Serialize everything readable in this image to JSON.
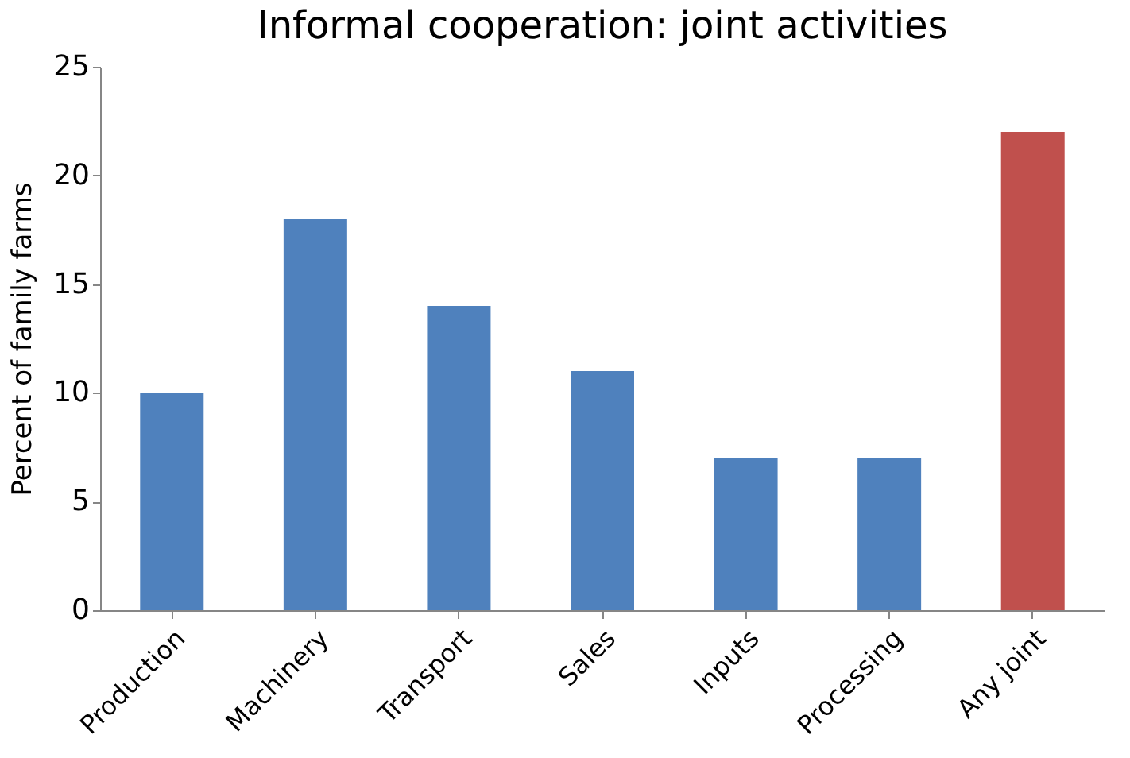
{
  "chart_data": {
    "type": "bar",
    "title": "Informal cooperation: joint activities",
    "ylabel": "Percent of family farms",
    "categories": [
      "Production",
      "Machinery",
      "Transport",
      "Sales",
      "Inputs",
      "Processing",
      "Any joint"
    ],
    "values": [
      10,
      18,
      14,
      11,
      7,
      7,
      22
    ],
    "colors": [
      "#4f81bd",
      "#4f81bd",
      "#4f81bd",
      "#4f81bd",
      "#4f81bd",
      "#4f81bd",
      "#c0504d"
    ],
    "ylim": [
      0,
      25
    ],
    "yticks": [
      0,
      5,
      10,
      15,
      20,
      25
    ],
    "grid": false
  }
}
